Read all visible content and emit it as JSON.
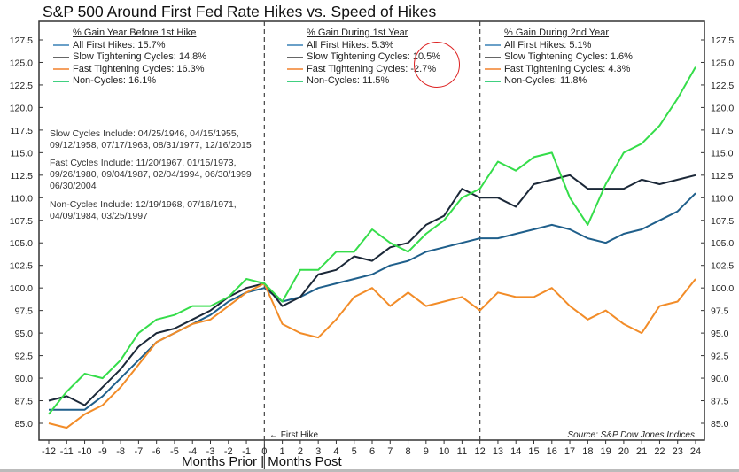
{
  "chart_data": {
    "type": "line",
    "title": "S&P 500 Around First Fed Rate Hikes vs. Speed of Hikes",
    "xlabel": "Months Prior | Months Post",
    "ylabel": "",
    "xlim": [
      -12,
      24
    ],
    "ylim": [
      82.5,
      130
    ],
    "x": [
      -12,
      -11,
      -10,
      -9,
      -8,
      -7,
      -6,
      -5,
      -4,
      -3,
      -2,
      -1,
      0,
      1,
      2,
      3,
      4,
      5,
      6,
      7,
      8,
      9,
      10,
      11,
      12,
      13,
      14,
      15,
      16,
      17,
      18,
      19,
      20,
      21,
      22,
      23,
      24
    ],
    "x_ticks": [
      "-12",
      "-11",
      "-10",
      "-9",
      "-8",
      "-7",
      "-6",
      "-5",
      "-4",
      "-3",
      "-2",
      "-1",
      "0",
      "1",
      "2",
      "3",
      "4",
      "5",
      "6",
      "7",
      "8",
      "9",
      "10",
      "11",
      "12",
      "13",
      "14",
      "15",
      "16",
      "17",
      "18",
      "19",
      "20",
      "21",
      "22",
      "23",
      "24"
    ],
    "y_ticks": [
      "85.0",
      "87.5",
      "90.0",
      "92.5",
      "95.0",
      "97.5",
      "100.0",
      "102.5",
      "105.0",
      "107.5",
      "110.0",
      "112.5",
      "115.0",
      "117.5",
      "120.0",
      "122.5",
      "125.0",
      "127.5"
    ],
    "series": [
      {
        "name": "All First Hikes",
        "color": "#1f5f8b",
        "values": [
          86.5,
          86.5,
          86.5,
          88,
          90,
          92,
          94,
          95,
          96,
          97,
          98.5,
          99.5,
          100,
          98.5,
          99,
          100,
          100.5,
          101,
          101.5,
          102.5,
          103,
          104,
          104.5,
          105,
          105.5,
          105.5,
          106,
          106.5,
          107,
          106.5,
          105.5,
          105,
          106,
          106.5,
          107.5,
          108.5,
          110.5
        ]
      },
      {
        "name": "Slow Tightening Cycles",
        "color": "#1b2838",
        "values": [
          87.5,
          88,
          87,
          89,
          91,
          93.5,
          95,
          95.5,
          96.5,
          97.5,
          99,
          100,
          100.5,
          98,
          99,
          101.5,
          102,
          103.5,
          103,
          104.5,
          105,
          107,
          108,
          111,
          110,
          110,
          109,
          111.5,
          112,
          112.5,
          111,
          111,
          111,
          112,
          111.5,
          112,
          112.5
        ]
      },
      {
        "name": "Fast Tightening Cycles",
        "color": "#f28c28",
        "values": [
          85,
          84.5,
          86,
          87,
          89,
          91.5,
          94,
          95,
          96,
          96.5,
          98,
          99.5,
          100.5,
          96,
          95,
          94.5,
          96.5,
          99,
          100,
          98,
          99.5,
          98,
          98.5,
          99,
          97.5,
          99.5,
          99,
          99,
          100,
          98,
          96.5,
          97.5,
          96,
          95,
          98,
          98.5,
          101
        ]
      },
      {
        "name": "Non-Cycles",
        "color": "#35dd4a",
        "values": [
          86,
          88.5,
          90.5,
          90,
          92,
          95,
          96.5,
          97,
          98,
          98,
          99,
          101,
          100.5,
          98.5,
          102,
          102,
          104,
          104,
          106.5,
          105,
          104,
          106,
          107.5,
          110,
          111,
          114,
          113,
          114.5,
          115,
          110,
          107,
          111.5,
          115,
          116,
          118,
          121,
          124.5
        ]
      }
    ],
    "dividers": [
      0,
      12
    ],
    "legend_panels": [
      {
        "heading": "% Gain Year Before 1st Hike",
        "items": [
          "All First Hikes: 15.7%",
          "Slow Tightening Cycles: 14.8%",
          "Fast Tightening Cycles: 16.3%",
          "Non-Cycles: 16.1%"
        ]
      },
      {
        "heading": "% Gain During 1st Year",
        "items": [
          "All First Hikes: 5.3%",
          "Slow Tightening Cycles: 10.5%",
          "Fast Tightening Cycles: -2.7%",
          "Non-Cycles: 11.5%"
        ]
      },
      {
        "heading": "% Gain During 2nd Year",
        "items": [
          "All First Hikes: 5.1%",
          "Slow Tightening Cycles: 1.6%",
          "Fast Tightening Cycles: 4.3%",
          "Non-Cycles: 11.8%"
        ]
      }
    ],
    "notes": [
      [
        "Slow Cycles Include: 04/25/1946, 04/15/1955,",
        "09/12/1958, 07/17/1963, 08/31/1977, 12/16/2015"
      ],
      [
        "Fast Cycles Include: 11/20/1967, 01/15/1973,",
        "09/26/1980, 09/04/1987, 02/04/1994, 06/30/1999",
        "06/30/2004"
      ],
      [
        "Non-Cycles Include: 12/19/1968, 07/16/1971,",
        "04/09/1984, 03/25/1997"
      ]
    ],
    "annotation": "← First Hike",
    "source": "Source:   S&P Dow Jones Indices",
    "highlight_color": "#dd2222"
  }
}
